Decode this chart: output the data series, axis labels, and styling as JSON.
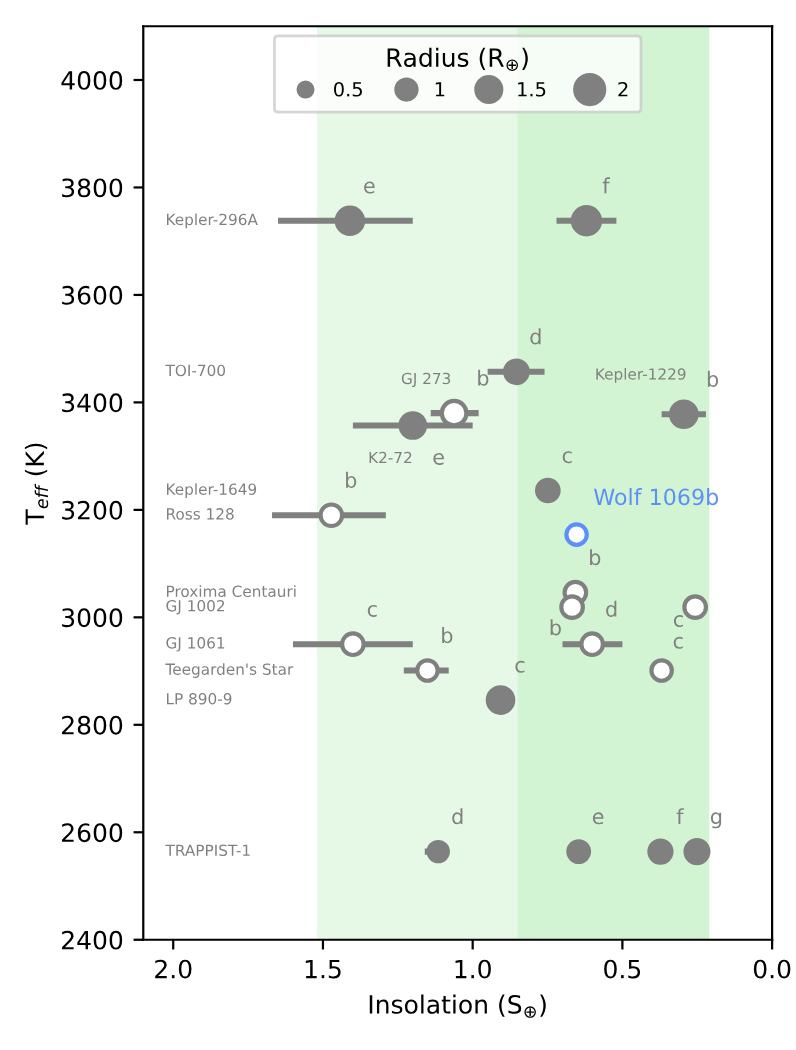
{
  "chart_data": {
    "type": "bubble",
    "xlabel": "Insolation (S$_{⊕}$)",
    "ylabel": "T$_{eff}$ (K)",
    "legend_title": "Radius (R$_{⊕}$)",
    "xlim": [
      2.1,
      0.0
    ],
    "xticks": [
      {
        "value": 2.0,
        "label": "2.0"
      },
      {
        "value": 1.5,
        "label": "1.5"
      },
      {
        "value": 1.0,
        "label": "1.0"
      },
      {
        "value": 0.5,
        "label": "0.5"
      },
      {
        "value": 0.0,
        "label": "0.0"
      }
    ],
    "ylim": [
      2400,
      4100
    ],
    "yticks": [
      2400,
      2600,
      2800,
      3000,
      3200,
      3400,
      3600,
      3800,
      4000
    ],
    "grid": false,
    "marker": "circle",
    "size_legend": [
      0.5,
      1,
      1.5,
      2
    ],
    "bands": [
      {
        "axis": "x",
        "from": 1.52,
        "to": 0.21,
        "color": "#e6f9e6"
      },
      {
        "axis": "x",
        "from": 0.85,
        "to": 0.21,
        "color": "#d2f4d2"
      }
    ],
    "series": [
      {
        "type": "bubble",
        "color": "#808080",
        "x": [
          1.41,
          0.62,
          0.854,
          1.062,
          1.2,
          0.295,
          0.749,
          1.472,
          0.657,
          0.668,
          0.257,
          1.4,
          0.601,
          1.151,
          0.369,
          0.907,
          1.115,
          0.646,
          0.373,
          0.251
        ],
        "values": [
          3738,
          3738,
          3457,
          3380,
          3357,
          3378,
          3236,
          3190,
          3046,
          3019,
          3019,
          2950,
          2950,
          2901,
          2901,
          2846,
          2564,
          2564,
          2564,
          2564
        ],
        "sizes": [
          1.5,
          1.6,
          1.1,
          1.3,
          1.3,
          1.4,
          1.0,
          1.0,
          1.0,
          1.0,
          1.0,
          1.0,
          1.0,
          0.9,
          0.9,
          1.4,
          0.8,
          0.92,
          1.05,
          1.13
        ],
        "colors": [
          "#808080",
          "#808080",
          "#808080",
          "#ffffff",
          "#808080",
          "#808080",
          "#808080",
          "#ffffff",
          "#ffffff",
          "#ffffff",
          "#ffffff",
          "#ffffff",
          "#ffffff",
          "#ffffff",
          "#ffffff",
          "#808080",
          "#808080",
          "#808080",
          "#808080",
          "#808080"
        ],
        "xerrors": [
          [
            1.2,
            1.65
          ],
          [
            0.52,
            0.72
          ],
          [
            0.76,
            0.95
          ],
          [
            0.98,
            1.14
          ],
          [
            1.0,
            1.4
          ],
          0.074,
          null,
          [
            1.29,
            1.67
          ],
          null,
          null,
          null,
          [
            1.2,
            1.6
          ],
          [
            0.5,
            0.7
          ],
          [
            1.08,
            1.23
          ],
          null,
          null,
          [
            1.08,
            1.16
          ],
          null,
          null,
          null
        ]
      },
      {
        "type": "bubble",
        "color": "#5b8ff9",
        "x": [
          0.653
        ],
        "values": [
          3154
        ],
        "sizes": [
          0.9
        ],
        "colors": [
          "#ffffff"
        ]
      }
    ],
    "annotations": [
      "Kepler-296A",
      "TOI-700",
      "Kepler-1649",
      "Ross 128",
      "Proxima Centauri",
      "GJ 1002",
      "GJ 1061",
      "Teegarden's Star",
      "LP 890-9",
      "TRAPPIST-1",
      {
        "text": "Wolf 1069b",
        "x": 0.653,
        "y": 3154
      },
      {
        "text": "e",
        "x": 1.41,
        "y": 3738
      },
      {
        "text": "f",
        "x": 0.62,
        "y": 3738
      },
      {
        "text": "d",
        "x": 0.854,
        "y": 3457
      },
      {
        "text": "GJ 273",
        "x": 1.062,
        "y": 3380
      },
      {
        "text": "b",
        "x": 1.062,
        "y": 3380
      },
      {
        "text": "K2-72",
        "x": 1.2,
        "y": 3357
      },
      {
        "text": "e",
        "x": 1.2,
        "y": 3357
      },
      {
        "text": "Kepler-1229",
        "x": 0.295,
        "y": 3378
      },
      {
        "text": "b",
        "x": 0.295,
        "y": 3378
      },
      {
        "text": "c",
        "x": 0.749,
        "y": 3236
      },
      {
        "text": "b",
        "x": 1.472,
        "y": 3190
      },
      {
        "text": "b",
        "x": 0.657,
        "y": 3046
      },
      {
        "text": "b",
        "x": 0.668,
        "y": 3019
      },
      {
        "text": "c",
        "x": 0.257,
        "y": 3019
      },
      {
        "text": "c",
        "x": 1.4,
        "y": 2950
      },
      {
        "text": "d",
        "x": 0.601,
        "y": 2950
      },
      {
        "text": "b",
        "x": 1.151,
        "y": 2901
      },
      {
        "text": "c",
        "x": 0.369,
        "y": 2901
      },
      {
        "text": "c",
        "x": 0.907,
        "y": 2846
      },
      {
        "text": "d",
        "x": 1.115,
        "y": 2564
      },
      {
        "text": "e",
        "x": 0.646,
        "y": 2564
      },
      {
        "text": "f",
        "x": 0.373,
        "y": 2564
      },
      {
        "text": "g",
        "x": 0.251,
        "y": 2564
      }
    ]
  }
}
